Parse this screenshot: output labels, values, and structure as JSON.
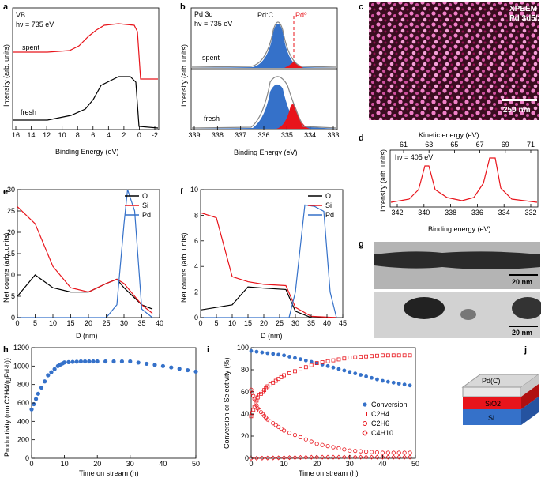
{
  "panels": {
    "a": {
      "label": "a",
      "caption": "VB",
      "hv": "hν = 735 eV",
      "series": [
        "spent",
        "fresh"
      ],
      "xlabel": "Binding Energy (eV)",
      "ylabel": "Intensity (arb. units)",
      "xticks": [
        "16",
        "14",
        "12",
        "10",
        "8",
        "6",
        "4",
        "2",
        "0",
        "-2"
      ]
    },
    "b": {
      "label": "b",
      "caption": "Pd 3d",
      "hv": "hν = 735 eV",
      "peak1": "Pd:C",
      "peak2": "Pd⁰",
      "series": [
        "spent",
        "fresh"
      ],
      "xlabel": "Binding Energy (eV)",
      "ylabel": "Intensity (arb. units)",
      "xticks": [
        "339",
        "338",
        "337",
        "336",
        "335",
        "334",
        "333"
      ]
    },
    "c": {
      "label": "c",
      "title1": "XPEEM",
      "title2": "Pd 3d5/2",
      "scalebar": "250 nm"
    },
    "d": {
      "label": "d",
      "hv": "hν = 405 eV",
      "top_xlabel": "Kinetic energy (eV)",
      "top_ticks": [
        "61",
        "63",
        "65",
        "67",
        "69",
        "71"
      ],
      "xlabel": "Binding energy (eV)",
      "ylabel": "Intensity (arb. units)",
      "xticks": [
        "342",
        "340",
        "338",
        "336",
        "334",
        "332"
      ]
    },
    "e": {
      "label": "e",
      "ylabel": "Net counts (arb. units)",
      "xlabel": "D (nm)",
      "legend": [
        "O",
        "Si",
        "Pd"
      ],
      "yticks": [
        "0",
        "5",
        "10",
        "15",
        "20",
        "25",
        "30"
      ],
      "xticks": [
        "0",
        "5",
        "10",
        "15",
        "20",
        "25",
        "30",
        "35",
        "40"
      ]
    },
    "f": {
      "label": "f",
      "ylabel": "Net counts (arb. units)",
      "xlabel": "D (nm)",
      "legend": [
        "O",
        "Si",
        "Pd"
      ],
      "yticks": [
        "0",
        "2",
        "4",
        "6",
        "8",
        "10"
      ],
      "xticks": [
        "0",
        "5",
        "10",
        "15",
        "20",
        "25",
        "30",
        "35",
        "40",
        "45"
      ]
    },
    "g": {
      "label": "g",
      "scale1": "20 nm",
      "scale2": "20 nm"
    },
    "h": {
      "label": "h",
      "ylabel": "Productivity (molC2H4/(gPd·h))",
      "xlabel": "Time on stream (h)",
      "yticks": [
        "0",
        "200",
        "400",
        "600",
        "800",
        "1000",
        "1200"
      ],
      "xticks": [
        "0",
        "10",
        "20",
        "30",
        "40",
        "50"
      ]
    },
    "i": {
      "label": "i",
      "ylabel": "Conversion or Selectivity (%)",
      "xlabel": "Time on stream (h)",
      "legend": [
        "Conversion",
        "C2H4",
        "C2H6",
        "C4H10"
      ],
      "yticks": [
        "0",
        "20",
        "40",
        "60",
        "80",
        "100"
      ],
      "xticks": [
        "0",
        "10",
        "20",
        "30",
        "40",
        "50"
      ]
    },
    "j": {
      "label": "j",
      "layers": [
        "Pd(C)",
        "SiO2",
        "Si"
      ]
    }
  },
  "colors": {
    "red": "#e8141b",
    "blue": "#3571c9",
    "black": "#000000"
  },
  "chart_data": [
    {
      "panel": "a",
      "type": "line",
      "xlabel": "Binding Energy (eV)",
      "xlim": [
        16,
        -2
      ],
      "series": [
        {
          "name": "spent",
          "x": [
            16,
            8,
            6,
            4,
            2,
            0.5,
            0,
            -0.5
          ],
          "y": [
            0.68,
            0.71,
            0.82,
            0.92,
            0.95,
            0.93,
            0.73,
            0.72
          ]
        },
        {
          "name": "fresh",
          "x": [
            16,
            8,
            6,
            4,
            2,
            0.5,
            0,
            -0.5
          ],
          "y": [
            0.05,
            0.08,
            0.18,
            0.35,
            0.52,
            0.52,
            0.05,
            0.03
          ]
        }
      ]
    },
    {
      "panel": "b",
      "type": "line",
      "xlabel": "Binding Energy (eV)",
      "xlim": [
        339,
        333
      ],
      "components": [
        {
          "name": "Pd:C",
          "center": 335.5
        },
        {
          "name": "Pd⁰",
          "center": 335.0
        }
      ]
    },
    {
      "panel": "d",
      "type": "line",
      "xlabel": "Binding energy (eV)",
      "xlim": [
        343,
        331
      ],
      "peaks": [
        340.1,
        334.8
      ]
    },
    {
      "panel": "e",
      "type": "line",
      "xlabel": "D (nm)",
      "xlim": [
        0,
        40
      ],
      "ylim": [
        0,
        30
      ],
      "series": [
        {
          "name": "O",
          "x": [
            0,
            5,
            10,
            15,
            20,
            25,
            28,
            30,
            35,
            38
          ],
          "y": [
            5,
            10,
            7,
            6,
            6,
            8,
            9,
            7,
            3,
            2
          ]
        },
        {
          "name": "Si",
          "x": [
            0,
            5,
            10,
            15,
            20,
            25,
            28,
            30,
            35,
            38
          ],
          "y": [
            26,
            22,
            12,
            7,
            6,
            8,
            9,
            8,
            3,
            1
          ]
        },
        {
          "name": "Pd",
          "x": [
            0,
            25,
            28,
            30,
            31,
            33,
            35,
            38
          ],
          "y": [
            0,
            0,
            3,
            22,
            30,
            25,
            2,
            0
          ]
        }
      ]
    },
    {
      "panel": "f",
      "type": "line",
      "xlabel": "D (nm)",
      "xlim": [
        0,
        45
      ],
      "ylim": [
        0,
        10
      ],
      "series": [
        {
          "name": "O",
          "x": [
            0,
            10,
            15,
            20,
            27,
            30,
            35,
            43
          ],
          "y": [
            0.6,
            1,
            2.4,
            2.3,
            2.2,
            0.5,
            0,
            0
          ]
        },
        {
          "name": "Si",
          "x": [
            0,
            5,
            10,
            15,
            20,
            27,
            30,
            35,
            43
          ],
          "y": [
            8.2,
            7.8,
            3.2,
            2.8,
            2.6,
            2.5,
            0.8,
            0.1,
            0
          ]
        },
        {
          "name": "Pd",
          "x": [
            0,
            28,
            30,
            33,
            36,
            39,
            41,
            43
          ],
          "y": [
            0,
            0,
            2,
            8.8,
            8.7,
            8.3,
            2,
            0
          ]
        }
      ]
    },
    {
      "panel": "h",
      "type": "scatter",
      "xlabel": "Time on stream (h)",
      "xlim": [
        0,
        50
      ],
      "ylim": [
        0,
        1200
      ],
      "series": [
        {
          "name": "Productivity",
          "x": [
            0,
            2,
            5,
            8,
            10,
            15,
            20,
            30,
            40,
            50
          ],
          "y": [
            530,
            700,
            900,
            1000,
            1040,
            1050,
            1050,
            1050,
            1000,
            940
          ]
        }
      ]
    },
    {
      "panel": "i",
      "type": "scatter",
      "xlabel": "Time on stream (h)",
      "xlim": [
        0,
        50
      ],
      "ylim": [
        0,
        100
      ],
      "series": [
        {
          "name": "Conversion",
          "x": [
            0,
            10,
            20,
            30,
            40,
            50
          ],
          "y": [
            97,
            93,
            86,
            78,
            70,
            65
          ]
        },
        {
          "name": "C2H4",
          "x": [
            0,
            2,
            5,
            10,
            20,
            30,
            40,
            50
          ],
          "y": [
            38,
            55,
            65,
            75,
            86,
            91,
            93,
            93
          ]
        },
        {
          "name": "C2H6",
          "x": [
            0,
            2,
            5,
            10,
            20,
            30,
            40,
            50
          ],
          "y": [
            62,
            45,
            35,
            25,
            13,
            7,
            5,
            5
          ]
        },
        {
          "name": "C4H10",
          "x": [
            0,
            10,
            20,
            30,
            40,
            50
          ],
          "y": [
            0,
            0.5,
            1,
            1,
            1,
            1
          ]
        }
      ]
    }
  ]
}
